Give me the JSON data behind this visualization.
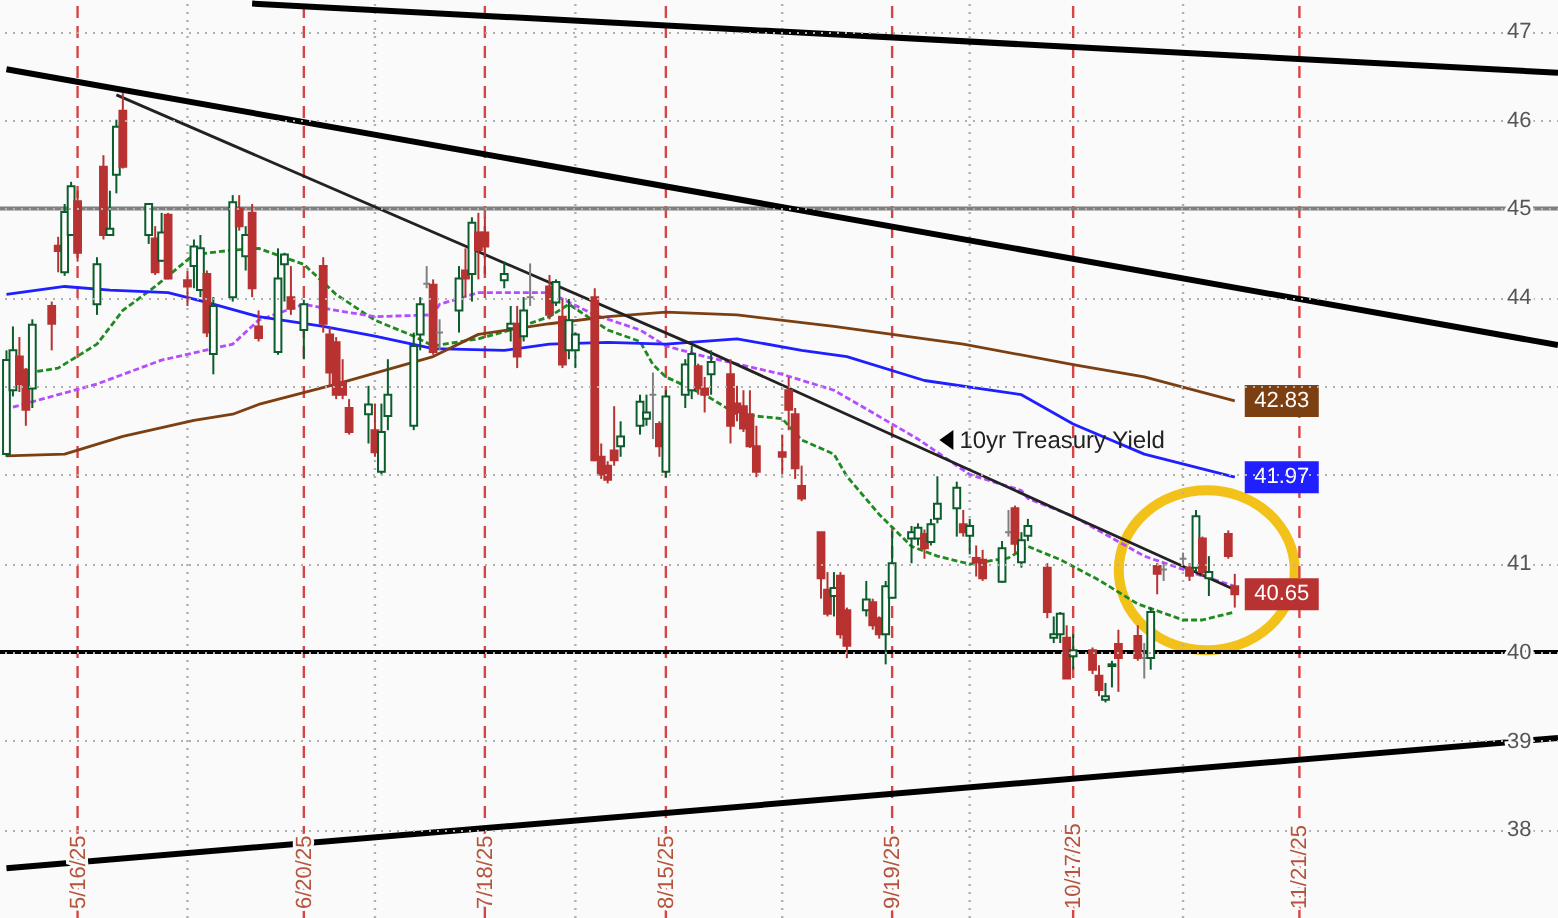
{
  "chart_data": {
    "type": "candlestick",
    "x": [
      "2025-05-05",
      "2025-05-06",
      "2025-05-07",
      "2025-05-08",
      "2025-05-09",
      "2025-05-12",
      "2025-05-13",
      "2025-05-14",
      "2025-05-15",
      "2025-05-16",
      "2025-05-19",
      "2025-05-20",
      "2025-05-21",
      "2025-05-22",
      "2025-05-23",
      "2025-05-27",
      "2025-05-28",
      "2025-05-29",
      "2025-05-30",
      "2025-06-02",
      "2025-06-03",
      "2025-06-04",
      "2025-06-05",
      "2025-06-06",
      "2025-06-09",
      "2025-06-10",
      "2025-06-11",
      "2025-06-12",
      "2025-06-13",
      "2025-06-16",
      "2025-06-17",
      "2025-06-18",
      "2025-06-20",
      "2025-06-23",
      "2025-06-24",
      "2025-06-25",
      "2025-06-26",
      "2025-06-27",
      "2025-06-30",
      "2025-07-01",
      "2025-07-02",
      "2025-07-03",
      "2025-07-07",
      "2025-07-08",
      "2025-07-09",
      "2025-07-10",
      "2025-07-11",
      "2025-07-14",
      "2025-07-15",
      "2025-07-16",
      "2025-07-17",
      "2025-07-18",
      "2025-07-21",
      "2025-07-22",
      "2025-07-23",
      "2025-07-24",
      "2025-07-25",
      "2025-07-28",
      "2025-07-29",
      "2025-07-30",
      "2025-07-31",
      "2025-08-01",
      "2025-08-04",
      "2025-08-05",
      "2025-08-06",
      "2025-08-07",
      "2025-08-08",
      "2025-08-11",
      "2025-08-12",
      "2025-08-13",
      "2025-08-14",
      "2025-08-15",
      "2025-08-18",
      "2025-08-19",
      "2025-08-20",
      "2025-08-21",
      "2025-08-22",
      "2025-08-25",
      "2025-08-26",
      "2025-08-27",
      "2025-08-28",
      "2025-08-29",
      "2025-09-02",
      "2025-09-03",
      "2025-09-04",
      "2025-09-05",
      "2025-09-08",
      "2025-09-09",
      "2025-09-10",
      "2025-09-11",
      "2025-09-12",
      "2025-09-15",
      "2025-09-16",
      "2025-09-17",
      "2025-09-18",
      "2025-09-19",
      "2025-09-22",
      "2025-09-23",
      "2025-09-24",
      "2025-09-25",
      "2025-09-26",
      "2025-09-29",
      "2025-09-30",
      "2025-10-01",
      "2025-10-02",
      "2025-10-03",
      "2025-10-06",
      "2025-10-07",
      "2025-10-08",
      "2025-10-09",
      "2025-10-10",
      "2025-10-13",
      "2025-10-14",
      "2025-10-15",
      "2025-10-16",
      "2025-10-17",
      "2025-10-20",
      "2025-10-21",
      "2025-10-22",
      "2025-10-23",
      "2025-10-24",
      "2025-10-27",
      "2025-10-28",
      "2025-10-29",
      "2025-10-30",
      "2025-10-31",
      "2025-11-03",
      "2025-11-04",
      "2025-11-05",
      "2025-11-06",
      "2025-11-07",
      "2025-11-10",
      "2025-11-11"
    ],
    "ohlc": [
      [
        42.23,
        43.4,
        42.2,
        43.29
      ],
      [
        42.95,
        43.67,
        42.88,
        43.4
      ],
      [
        43.33,
        43.55,
        42.93,
        43.02
      ],
      [
        43.18,
        43.2,
        42.55,
        42.73
      ],
      [
        42.97,
        43.75,
        42.75,
        43.69
      ],
      [
        43.9,
        43.95,
        43.4,
        43.7
      ],
      [
        44.58,
        44.68,
        44.28,
        44.52
      ],
      [
        44.28,
        45.05,
        44.24,
        44.96
      ],
      [
        44.7,
        45.3,
        44.7,
        45.25
      ],
      [
        45.08,
        45.2,
        44.4,
        44.5
      ],
      [
        43.92,
        44.45,
        43.8,
        44.37
      ],
      [
        45.47,
        45.6,
        44.65,
        44.7
      ],
      [
        44.7,
        45.2,
        44.7,
        44.77
      ],
      [
        45.38,
        46.0,
        45.17,
        45.92
      ],
      [
        46.1,
        46.3,
        45.45,
        45.47
      ],
      [
        44.7,
        45.05,
        44.6,
        45.05
      ],
      [
        44.66,
        44.8,
        44.25,
        44.28
      ],
      [
        44.41,
        44.95,
        44.4,
        44.73
      ],
      [
        44.93,
        44.95,
        44.2,
        44.21
      ],
      [
        44.19,
        44.3,
        43.9,
        44.12
      ],
      [
        44.35,
        44.65,
        44.1,
        44.57
      ],
      [
        44.08,
        44.7,
        44.0,
        44.55
      ],
      [
        44.26,
        44.3,
        43.55,
        43.6
      ],
      [
        43.36,
        44.0,
        43.13,
        43.9
      ],
      [
        44.0,
        45.15,
        43.95,
        45.07
      ],
      [
        45.0,
        45.15,
        44.75,
        44.8
      ],
      [
        44.46,
        44.8,
        44.3,
        44.7
      ],
      [
        44.95,
        45.05,
        44.0,
        44.1
      ],
      [
        43.67,
        43.85,
        43.5,
        43.54
      ],
      [
        43.38,
        44.55,
        43.35,
        44.21
      ],
      [
        44.37,
        44.5,
        43.95,
        44.48
      ],
      [
        44.0,
        44.35,
        43.8,
        43.87
      ],
      [
        43.63,
        43.97,
        43.3,
        43.92
      ],
      [
        44.35,
        44.45,
        43.6,
        43.7
      ],
      [
        43.58,
        43.66,
        43.0,
        43.15
      ],
      [
        43.49,
        43.55,
        42.85,
        42.9
      ],
      [
        43.04,
        43.3,
        42.85,
        42.9
      ],
      [
        42.75,
        42.85,
        42.45,
        42.48
      ],
      [
        42.68,
        43.0,
        42.35,
        42.79
      ],
      [
        42.5,
        42.8,
        42.2,
        42.25
      ],
      [
        42.03,
        42.8,
        42.0,
        42.48
      ],
      [
        42.66,
        43.3,
        42.5,
        42.9
      ],
      [
        42.55,
        43.6,
        42.5,
        43.45
      ],
      [
        43.58,
        44.0,
        43.4,
        43.92
      ],
      [
        44.15,
        44.35,
        44.1,
        44.15
      ],
      [
        44.14,
        44.2,
        43.35,
        43.38
      ],
      [
        43.6,
        43.75,
        43.4,
        43.6
      ],
      [
        43.85,
        44.35,
        43.6,
        44.21
      ],
      [
        44.3,
        44.55,
        44.0,
        44.21
      ],
      [
        44.26,
        44.9,
        43.95,
        44.84
      ],
      [
        44.73,
        44.95,
        44.2,
        44.53
      ],
      [
        44.73,
        44.9,
        44.26,
        44.57
      ],
      [
        44.19,
        44.4,
        44.1,
        44.26
      ],
      [
        43.65,
        43.9,
        43.5,
        43.7
      ],
      [
        43.7,
        43.9,
        43.2,
        43.33
      ],
      [
        43.56,
        44.0,
        43.5,
        43.85
      ],
      [
        44.0,
        44.38,
        43.9,
        44.0
      ],
      [
        44.12,
        44.25,
        43.75,
        43.8
      ],
      [
        43.94,
        44.2,
        43.9,
        44.17
      ],
      [
        43.78,
        43.98,
        43.2,
        43.24
      ],
      [
        43.4,
        43.98,
        43.3,
        43.74
      ],
      [
        43.4,
        43.6,
        43.2,
        43.58
      ],
      [
        44.0,
        44.1,
        42.15,
        42.16
      ],
      [
        42.2,
        42.35,
        41.95,
        42.0
      ],
      [
        42.1,
        42.15,
        41.9,
        41.94
      ],
      [
        42.27,
        42.77,
        42.1,
        42.16
      ],
      [
        42.32,
        42.6,
        42.2,
        42.43
      ],
      [
        42.55,
        42.9,
        42.45,
        42.82
      ],
      [
        42.63,
        42.9,
        42.55,
        42.7
      ],
      [
        42.9,
        43.15,
        42.4,
        42.9
      ],
      [
        42.57,
        42.6,
        42.2,
        42.32
      ],
      [
        42.03,
        42.95,
        41.97,
        42.88
      ],
      [
        42.9,
        43.3,
        42.75,
        43.24
      ],
      [
        42.95,
        43.45,
        42.85,
        43.36
      ],
      [
        43.22,
        43.25,
        42.9,
        42.97
      ],
      [
        42.97,
        43.1,
        42.7,
        42.9
      ],
      [
        43.13,
        43.4,
        42.9,
        43.27
      ],
      [
        43.13,
        43.3,
        42.35,
        42.55
      ],
      [
        42.8,
        43.0,
        42.6,
        42.7
      ],
      [
        42.77,
        42.95,
        42.48,
        42.52
      ],
      [
        42.68,
        42.95,
        42.3,
        42.32
      ],
      [
        42.32,
        42.55,
        41.97,
        42.03
      ],
      [
        42.25,
        42.45,
        42.0,
        42.2
      ],
      [
        42.95,
        43.1,
        42.5,
        42.73
      ],
      [
        42.68,
        42.75,
        41.95,
        42.07
      ],
      [
        41.87,
        42.1,
        41.7,
        41.73
      ],
      [
        41.35,
        41.35,
        40.6,
        40.83
      ],
      [
        40.7,
        40.9,
        40.4,
        40.43
      ],
      [
        40.63,
        40.9,
        40.4,
        40.72
      ],
      [
        40.86,
        40.9,
        40.15,
        40.2
      ],
      [
        40.47,
        40.5,
        39.93,
        40.07
      ],
      [
        40.47,
        40.8,
        40.4,
        40.59
      ],
      [
        40.56,
        40.6,
        40.25,
        40.3
      ],
      [
        40.38,
        40.4,
        40.15,
        40.2
      ],
      [
        40.2,
        40.8,
        39.86,
        40.74
      ],
      [
        40.61,
        41.36,
        40.6,
        41.0
      ],
      [
        41.28,
        41.42,
        41.0,
        41.35
      ],
      [
        41.28,
        41.45,
        41.2,
        41.4
      ],
      [
        41.33,
        41.38,
        41.05,
        41.17
      ],
      [
        41.24,
        41.5,
        41.2,
        41.44
      ],
      [
        41.5,
        41.98,
        41.45,
        41.67
      ],
      [
        41.62,
        41.92,
        41.3,
        41.85
      ],
      [
        41.44,
        41.6,
        41.3,
        41.35
      ],
      [
        41.31,
        41.5,
        41.1,
        41.42
      ],
      [
        41.06,
        41.2,
        40.85,
        41.01
      ],
      [
        41.04,
        41.15,
        40.8,
        40.83
      ],
      [
        40.79,
        41.25,
        40.78,
        41.17
      ],
      [
        41.35,
        41.6,
        41.3,
        41.35
      ],
      [
        41.62,
        41.65,
        41.1,
        41.22
      ],
      [
        41.01,
        41.35,
        40.95,
        41.26
      ],
      [
        41.31,
        41.5,
        41.25,
        41.42
      ],
      [
        40.95,
        41.0,
        40.38,
        40.45
      ],
      [
        40.16,
        40.4,
        40.1,
        40.2
      ],
      [
        40.2,
        40.45,
        40.1,
        40.43
      ],
      [
        40.16,
        40.3,
        39.7,
        39.7
      ],
      [
        39.95,
        40.2,
        39.8,
        40.02
      ],
      [
        40.02,
        40.05,
        39.75,
        39.8
      ],
      [
        39.73,
        39.85,
        39.5,
        39.57
      ],
      [
        39.46,
        39.65,
        39.43,
        39.5
      ],
      [
        39.84,
        39.9,
        39.6,
        39.86
      ],
      [
        40.09,
        40.25,
        39.55,
        39.93
      ],
      [
        40.18,
        40.3,
        39.9,
        39.93
      ],
      [
        39.93,
        40.1,
        39.7,
        39.93
      ],
      [
        39.93,
        40.5,
        39.8,
        40.45
      ],
      [
        40.97,
        41.0,
        40.65,
        40.88
      ],
      [
        40.93,
        41.0,
        40.8,
        40.93
      ],
      [
        41.05,
        41.12,
        40.98,
        41.05
      ],
      [
        40.95,
        41.0,
        40.8,
        40.86
      ],
      [
        40.95,
        41.6,
        40.9,
        41.53
      ],
      [
        41.28,
        41.3,
        40.85,
        40.9
      ],
      [
        40.83,
        41.08,
        40.63,
        40.9
      ],
      [
        41.33,
        41.37,
        41.05,
        41.08
      ],
      [
        40.74,
        40.88,
        40.5,
        40.65
      ]
    ],
    "colors": [
      "#0b5d2b",
      "#0b5d2b",
      "#b83232",
      "#b83232",
      "#0b5d2b",
      "#b83232",
      "#b83232",
      "#0b5d2b",
      "#0b5d2b",
      "#b83232",
      "#0b5d2b",
      "#b83232",
      "#0b5d2b",
      "#0b5d2b",
      "#b83232",
      "#0b5d2b",
      "#b83232",
      "#0b5d2b",
      "#b83232",
      "#b83232",
      "#0b5d2b",
      "#0b5d2b",
      "#b83232",
      "#0b5d2b",
      "#0b5d2b",
      "#b83232",
      "#0b5d2b",
      "#b83232",
      "#b83232",
      "#0b5d2b",
      "#0b5d2b",
      "#b83232",
      "#0b5d2b",
      "#b83232",
      "#b83232",
      "#b83232",
      "#b83232",
      "#b83232",
      "#0b5d2b",
      "#b83232",
      "#0b5d2b",
      "#0b5d2b",
      "#0b5d2b",
      "#0b5d2b",
      "#808080",
      "#b83232",
      "#808080",
      "#0b5d2b",
      "#b83232",
      "#0b5d2b",
      "#b83232",
      "#b83232",
      "#0b5d2b",
      "#0b5d2b",
      "#b83232",
      "#0b5d2b",
      "#808080",
      "#b83232",
      "#0b5d2b",
      "#b83232",
      "#0b5d2b",
      "#0b5d2b",
      "#b83232",
      "#b83232",
      "#b83232",
      "#b83232",
      "#0b5d2b",
      "#0b5d2b",
      "#0b5d2b",
      "#808080",
      "#b83232",
      "#0b5d2b",
      "#0b5d2b",
      "#0b5d2b",
      "#b83232",
      "#b83232",
      "#0b5d2b",
      "#b83232",
      "#b83232",
      "#b83232",
      "#b83232",
      "#b83232",
      "#b83232",
      "#b83232",
      "#b83232",
      "#b83232",
      "#b83232",
      "#b83232",
      "#0b5d2b",
      "#b83232",
      "#b83232",
      "#0b5d2b",
      "#b83232",
      "#b83232",
      "#0b5d2b",
      "#0b5d2b",
      "#0b5d2b",
      "#0b5d2b",
      "#b83232",
      "#0b5d2b",
      "#0b5d2b",
      "#0b5d2b",
      "#b83232",
      "#0b5d2b",
      "#b83232",
      "#b83232",
      "#0b5d2b",
      "#808080",
      "#b83232",
      "#0b5d2b",
      "#0b5d2b",
      "#b83232",
      "#0b5d2b",
      "#0b5d2b",
      "#b83232",
      "#0b5d2b",
      "#b83232",
      "#b83232",
      "#0b5d2b",
      "#0b5d2b",
      "#b83232",
      "#b83232",
      "#808080",
      "#0b5d2b",
      "#b83232",
      "#808080",
      "#808080",
      "#b83232",
      "#0b5d2b",
      "#b83232",
      "#0b5d2b",
      "#b83232",
      "#b83232"
    ],
    "series": [
      {
        "type": "line",
        "color": "#1f8a1f",
        "line_style": "dashed",
        "x": [
          "2025-05-07",
          "2025-05-13",
          "2025-05-19",
          "2025-05-23",
          "2025-05-28",
          "2025-06-03",
          "2025-06-09",
          "2025-06-13",
          "2025-06-20",
          "2025-06-25",
          "2025-07-01",
          "2025-07-07",
          "2025-07-10",
          "2025-07-17",
          "2025-07-22",
          "2025-07-28",
          "2025-07-31",
          "2025-08-06",
          "2025-08-11",
          "2025-08-13",
          "2025-08-15",
          "2025-08-21",
          "2025-08-26",
          "2025-09-02",
          "2025-09-05",
          "2025-09-10",
          "2025-09-12",
          "2025-09-17",
          "2025-09-22",
          "2025-09-26",
          "2025-10-01",
          "2025-10-07",
          "2025-10-10",
          "2025-10-15",
          "2025-10-21",
          "2025-10-27",
          "2025-11-03",
          "2025-11-06",
          "2025-11-11"
        ],
        "values": [
          43.13,
          43.2,
          43.47,
          43.85,
          44.12,
          44.48,
          44.53,
          44.55,
          44.37,
          44.03,
          43.74,
          43.56,
          43.45,
          43.53,
          43.63,
          43.78,
          43.92,
          43.63,
          43.5,
          43.24,
          43.1,
          42.9,
          42.68,
          42.63,
          42.39,
          42.23,
          41.98,
          41.55,
          41.19,
          41.08,
          40.99,
          41.06,
          41.19,
          41.04,
          40.81,
          40.54,
          40.36,
          40.36,
          40.45
        ]
      },
      {
        "type": "line",
        "color": "#b44dff",
        "line_style": "dashed",
        "x": [
          "2025-05-06",
          "2025-05-19",
          "2025-05-29",
          "2025-06-09",
          "2025-06-13",
          "2025-06-20",
          "2025-06-25",
          "2025-07-01",
          "2025-07-10",
          "2025-07-11",
          "2025-07-17",
          "2025-07-28",
          "2025-08-04",
          "2025-08-11",
          "2025-08-15",
          "2025-08-21",
          "2025-09-02",
          "2025-09-10",
          "2025-09-23",
          "2025-10-01",
          "2025-10-09",
          "2025-10-10",
          "2025-10-17",
          "2025-10-28",
          "2025-11-05",
          "2025-11-11"
        ],
        "values": [
          42.76,
          43.02,
          43.29,
          43.47,
          43.74,
          43.92,
          43.85,
          43.78,
          43.8,
          43.92,
          44.05,
          44.05,
          43.8,
          43.63,
          43.45,
          43.33,
          43.13,
          42.95,
          42.4,
          42.0,
          41.82,
          41.73,
          41.53,
          41.08,
          40.88,
          40.74
        ]
      },
      {
        "type": "line",
        "color": "#1f1fff",
        "x": [
          "2025-05-05",
          "2025-05-14",
          "2025-05-21",
          "2025-05-30",
          "2025-06-05",
          "2025-06-13",
          "2025-06-23",
          "2025-07-01",
          "2025-07-10",
          "2025-07-21",
          "2025-07-28",
          "2025-08-06",
          "2025-08-15",
          "2025-08-26",
          "2025-09-05",
          "2025-09-12",
          "2025-09-24",
          "2025-10-09",
          "2025-10-17",
          "2025-10-28",
          "2025-11-11"
        ],
        "values": [
          44.03,
          44.12,
          44.08,
          44.05,
          43.94,
          43.78,
          43.67,
          43.56,
          43.42,
          43.4,
          43.47,
          43.49,
          43.47,
          43.53,
          43.4,
          43.33,
          43.06,
          42.9,
          42.57,
          42.23,
          41.97
        ]
      },
      {
        "type": "line",
        "color": "#7b3f12",
        "x": [
          "2025-05-05",
          "2025-05-14",
          "2025-05-23",
          "2025-06-03",
          "2025-06-09",
          "2025-06-13",
          "2025-06-25",
          "2025-07-10",
          "2025-07-17",
          "2025-07-28",
          "2025-08-06",
          "2025-08-15",
          "2025-08-26",
          "2025-09-10",
          "2025-09-30",
          "2025-10-17",
          "2025-10-28",
          "2025-11-11"
        ],
        "values": [
          42.21,
          42.23,
          42.43,
          42.61,
          42.68,
          42.79,
          43.02,
          43.33,
          43.58,
          43.7,
          43.78,
          43.83,
          43.8,
          43.67,
          43.47,
          43.24,
          43.1,
          42.83
        ]
      },
      {
        "type": "line",
        "color": "#000000",
        "x": [
          "2025-06-12",
          "2025-12-31"
        ],
        "values": [
          47.31,
          46.53
        ]
      },
      {
        "type": "line",
        "color": "#000000",
        "x": [
          "2025-05-05",
          "2025-12-31"
        ],
        "values": [
          46.57,
          43.46
        ]
      },
      {
        "type": "line",
        "color": "#000000",
        "x": [
          "2025-05-05",
          "2025-12-31"
        ],
        "values": [
          37.56,
          39.03
        ]
      },
      {
        "type": "line",
        "color": "#222222",
        "x": [
          "2025-05-22",
          "2025-08-19",
          "2025-11-11"
        ],
        "values": [
          46.28,
          43.47,
          40.7
        ]
      }
    ],
    "xlim": [
      "2025-05-04",
      "2025-12-31"
    ],
    "xticks": [
      {
        "value": "2025-05-16",
        "label": "5/16/25"
      },
      {
        "value": "2025-06-20",
        "label": "6/20/25"
      },
      {
        "value": "2025-07-18",
        "label": "7/18/25"
      },
      {
        "value": "2025-08-15",
        "label": "8/15/25"
      },
      {
        "value": "2025-09-19",
        "label": "9/19/25"
      },
      {
        "value": "2025-10-17",
        "label": "10/17/25"
      },
      {
        "value": "2025-11-21",
        "label": "11/21/25"
      }
    ],
    "ylim": [
      37,
      47.35
    ],
    "yticks": [
      38,
      39,
      40,
      41,
      {
        "value": 42,
        "label": null
      },
      {
        "value": 43,
        "label": null
      },
      44,
      45,
      46,
      47
    ],
    "grid": "y",
    "ref_lines": [
      {
        "axis": "x",
        "value": "2025-06-02",
        "color": "#b0b0b0",
        "line_style": "dotted"
      },
      {
        "axis": "x",
        "value": "2025-07-01",
        "color": "#b0b0b0",
        "line_style": "dotted"
      },
      {
        "axis": "x",
        "value": "2025-08-01",
        "color": "#b0b0b0",
        "line_style": "dotted"
      },
      {
        "axis": "x",
        "value": "2025-09-02",
        "color": "#b0b0b0",
        "line_style": "dotted"
      },
      {
        "axis": "x",
        "value": "2025-10-01",
        "color": "#b0b0b0",
        "line_style": "dotted"
      },
      {
        "axis": "x",
        "value": "2025-11-03",
        "color": "#b0b0b0",
        "line_style": "dotted"
      },
      {
        "axis": "x",
        "value": "2025-05-16",
        "color": "#d64545",
        "line_style": "dashed"
      },
      {
        "axis": "x",
        "value": "2025-06-20",
        "color": "#d64545",
        "line_style": "dashed"
      },
      {
        "axis": "x",
        "value": "2025-07-18",
        "color": "#d64545",
        "line_style": "dashed"
      },
      {
        "axis": "x",
        "value": "2025-08-15",
        "color": "#d64545",
        "line_style": "dashed"
      },
      {
        "axis": "x",
        "value": "2025-09-19",
        "color": "#d64545",
        "line_style": "dashed"
      },
      {
        "axis": "x",
        "value": "2025-10-17",
        "color": "#d64545",
        "line_style": "dashed"
      },
      {
        "axis": "x",
        "value": "2025-11-21",
        "color": "#d64545",
        "line_style": "dashed"
      },
      {
        "axis": "y",
        "value": 45,
        "color": "#7f7f7f"
      },
      {
        "axis": "y",
        "value": 40,
        "color": "#000000"
      }
    ],
    "annotations": [
      {
        "text": "10yr Treasury Yield",
        "x": "2025-09-26",
        "y": 42.39
      },
      {
        "text": "42.83",
        "x": "2025-11-11",
        "y": 42.83
      },
      {
        "text": "41.97",
        "x": "2025-11-11",
        "y": 41.97
      },
      {
        "text": "40.65",
        "x": "2025-11-11",
        "y": 40.65
      }
    ]
  }
}
